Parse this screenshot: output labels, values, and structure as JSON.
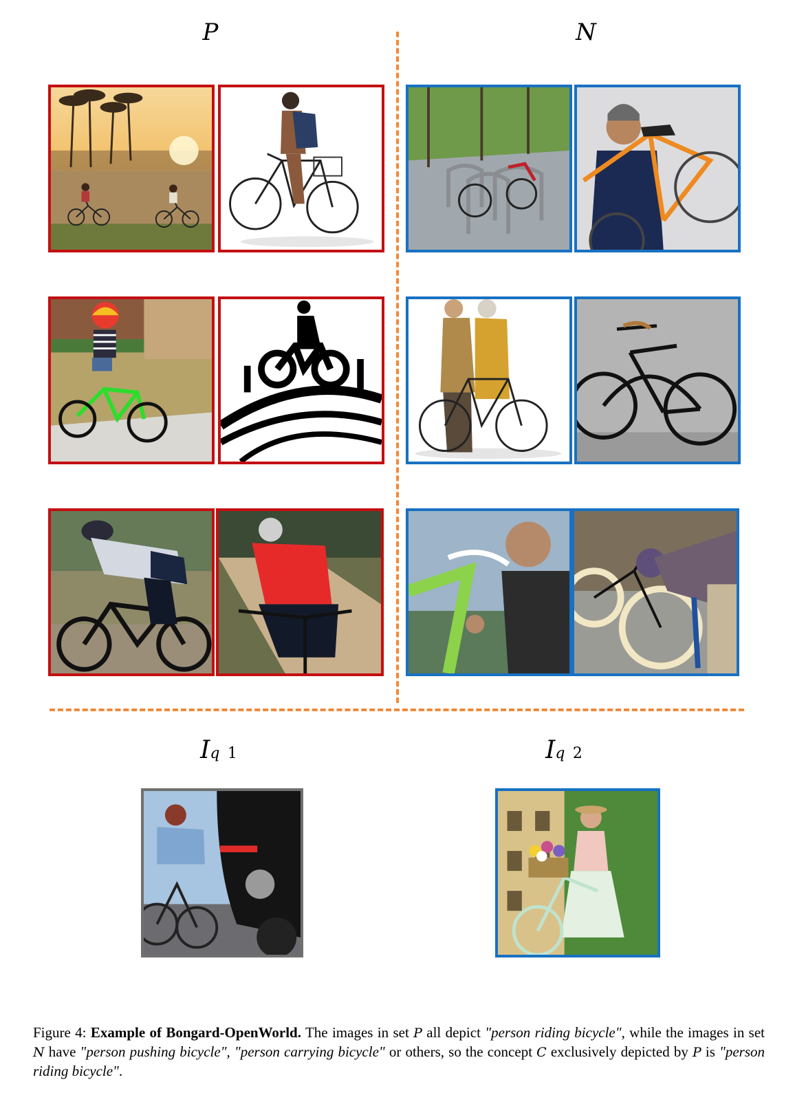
{
  "headings": {
    "positive": "P",
    "negative": "N"
  },
  "queries": {
    "q1": {
      "symbol": "I",
      "sub": "q",
      "index": "1"
    },
    "q2": {
      "symbol": "I",
      "sub": "q",
      "index": "2"
    }
  },
  "caption": {
    "figure_label": "Figure 4:",
    "bold": "Example of Bongard-OpenWorld.",
    "t1": " The images in set ",
    "setP": "P",
    "t2": " all depict ",
    "q_riding": "\"person riding bicycle\"",
    "t3": ", while the images in set ",
    "setN": "N",
    "t4": " have ",
    "q_pushing": "\"person pushing bicycle\"",
    "t5": ", ",
    "q_carrying": "\"person carrying bicycle\"",
    "t6": " or others, so the concept ",
    "setC": "C",
    "t7": " exclusively depicted by ",
    "setP2": "P",
    "t8": " is ",
    "q_riding2": "\"person riding bicycle\"",
    "t9": "."
  },
  "colors": {
    "positive_border": "#c40f12",
    "negative_border": "#1871c2",
    "query1_border": "#707070",
    "query2_border": "#1871c2",
    "divider": "#f08a3a"
  },
  "images": {
    "positive": [
      "sunset beach cyclists",
      "man with backpack riding bicycle",
      "child riding green bicycle",
      "cyclist clipart",
      "racing cyclist",
      "cyclist in red jersey"
    ],
    "negative": [
      "parked bicycles on street",
      "man carrying orange bicycle",
      "couple walking with bicycle",
      "black bicycle against wall",
      "man cleaning bicycle",
      "man pumping bicycle tire"
    ],
    "queries": [
      "woman cycling beside car",
      "woman with flowers and bicycle"
    ]
  }
}
